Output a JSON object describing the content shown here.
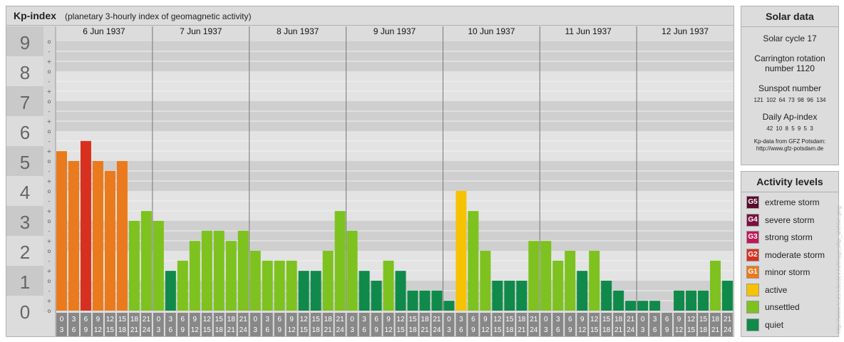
{
  "header": {
    "title": "Kp-index",
    "subtitle": "(planetary 3-hourly index of geomagnetic activity)"
  },
  "chart_data": {
    "type": "bar",
    "y_ticks": [
      "0",
      "1",
      "2",
      "3",
      "4",
      "5",
      "6",
      "7",
      "8",
      "9"
    ],
    "sub_ticks": [
      "o",
      "+",
      "-",
      "o",
      "+",
      "-",
      "o",
      "+",
      "-",
      "o",
      "+",
      "-",
      "o",
      "+",
      "-",
      "o",
      "+",
      "-",
      "o",
      "+",
      "-",
      "o",
      "+",
      "-",
      "o",
      "+",
      "-",
      "o"
    ],
    "ylim": [
      0,
      9
    ],
    "days": [
      "6 Jun 1937",
      "7 Jun 1937",
      "8 Jun 1937",
      "9 Jun 1937",
      "10 Jun 1937",
      "11 Jun 1937",
      "12 Jun 1937"
    ],
    "hour_ranges": [
      [
        "0",
        "3"
      ],
      [
        "3",
        "6"
      ],
      [
        "6",
        "9"
      ],
      [
        "9",
        "12"
      ],
      [
        "12",
        "15"
      ],
      [
        "15",
        "18"
      ],
      [
        "18",
        "21"
      ],
      [
        "21",
        "24"
      ]
    ],
    "values": [
      5.33,
      5.0,
      5.67,
      5.0,
      4.67,
      5.0,
      3.0,
      3.33,
      3.0,
      1.33,
      1.67,
      2.33,
      2.67,
      2.67,
      2.33,
      2.67,
      2.0,
      1.67,
      1.67,
      1.67,
      1.33,
      1.33,
      2.0,
      3.33,
      2.67,
      1.33,
      1.0,
      1.67,
      1.33,
      0.67,
      0.67,
      0.67,
      0.33,
      4.0,
      3.33,
      2.0,
      1.0,
      1.0,
      1.0,
      2.33,
      2.33,
      1.67,
      2.0,
      1.33,
      2.0,
      1.0,
      0.67,
      0.33,
      0.33,
      0.33,
      0.0,
      0.67,
      0.67,
      0.67,
      1.67,
      1.0
    ],
    "colors": {
      "quiet": "#0f8a4a",
      "unsettled": "#7dc21e",
      "active": "#f7c200",
      "minor": "#ea7a1c",
      "moderate": "#d8301e"
    }
  },
  "solar_data": {
    "title": "Solar data",
    "solar_cycle": "Solar cycle 17",
    "carrington_line1": "Carrington rotation",
    "carrington_line2": "number 1120",
    "sunspot_label": "Sunspot number",
    "sunspot_values": "121 102 64 73 98 96 134",
    "ap_label": "Daily Ap-index",
    "ap_values": "42 10 8 5 9 5 3",
    "source_line1": "Kp-data from GFZ Potsdam:",
    "source_line2": "http://www.gfz-potsdam.de"
  },
  "activity_levels": {
    "title": "Activity levels",
    "items": [
      {
        "badge": "G5",
        "label": "extreme storm",
        "color": "#5a0a2a"
      },
      {
        "badge": "G4",
        "label": "severe storm",
        "color": "#7a1040"
      },
      {
        "badge": "G3",
        "label": "strong storm",
        "color": "#c0185a"
      },
      {
        "badge": "G2",
        "label": "moderate storm",
        "color": "#d8301e"
      },
      {
        "badge": "G1",
        "label": "minor storm",
        "color": "#ea7a1c"
      },
      {
        "badge": "",
        "label": "active",
        "color": "#f7c200"
      },
      {
        "badge": "",
        "label": "unsettled",
        "color": "#7dc21e"
      },
      {
        "badge": "",
        "label": "quiet",
        "color": "#0f8a4a"
      }
    ]
  },
  "watermark": "http://www.tesis.lebedev.ru/images/kp_archive.png"
}
